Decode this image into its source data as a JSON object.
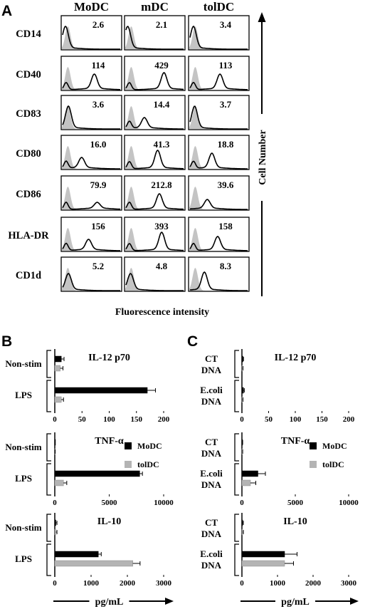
{
  "panels": {
    "a": "A",
    "b": "B",
    "c": "C"
  },
  "flow": {
    "columns": [
      "MoDC",
      "mDC",
      "tolDC"
    ],
    "rows": [
      {
        "marker": "CD14",
        "values": [
          "2.6",
          "2.1",
          "3.4"
        ]
      },
      {
        "marker": "CD40",
        "values": [
          "114",
          "429",
          "113"
        ]
      },
      {
        "marker": "CD83",
        "values": [
          "3.6",
          "14.4",
          "3.7"
        ]
      },
      {
        "marker": "CD80",
        "values": [
          "16.0",
          "41.3",
          "18.8"
        ]
      },
      {
        "marker": "CD86",
        "values": [
          "79.9",
          "212.8",
          "39.6"
        ]
      },
      {
        "marker": "HLA-DR",
        "values": [
          "156",
          "393",
          "158"
        ]
      },
      {
        "marker": "CD1d",
        "values": [
          "5.2",
          "4.8",
          "8.3"
        ]
      }
    ],
    "xlabel": "Fluorescence intensity",
    "ylabel": "Cell Number"
  },
  "chart_data": [
    {
      "panel": "B",
      "type": "bar",
      "title": "IL-12 p70",
      "categories": [
        "Non-stim",
        "LPS"
      ],
      "series": [
        {
          "name": "MoDC",
          "values": [
            12,
            170
          ],
          "errors": [
            5,
            15
          ]
        },
        {
          "name": "tolDC",
          "values": [
            10,
            12
          ],
          "errors": [
            5,
            4
          ]
        }
      ],
      "xlim": [
        0,
        200
      ],
      "ticks": [
        0,
        50,
        100,
        150,
        200
      ],
      "color_series": [
        "#000000",
        "#b4b4b4"
      ]
    },
    {
      "panel": "B",
      "type": "bar",
      "title": "TNF-α",
      "categories": [
        "Non-stim",
        "LPS"
      ],
      "series": [
        {
          "name": "MoDC",
          "values": [
            20,
            7800
          ],
          "errors": [
            10,
            250
          ]
        },
        {
          "name": "tolDC",
          "values": [
            20,
            800
          ],
          "errors": [
            10,
            300
          ]
        }
      ],
      "xlim": [
        0,
        10000
      ],
      "ticks": [
        0,
        5000,
        10000
      ],
      "legend": true
    },
    {
      "panel": "B",
      "type": "bar",
      "title": "IL-10",
      "categories": [
        "Non-stim",
        "LPS"
      ],
      "series": [
        {
          "name": "MoDC",
          "values": [
            30,
            1200
          ],
          "errors": [
            30,
            80
          ]
        },
        {
          "name": "tolDC",
          "values": [
            30,
            2150
          ],
          "errors": [
            30,
            200
          ]
        }
      ],
      "xlim": [
        0,
        3000
      ],
      "ticks": [
        0,
        1000,
        2000,
        3000
      ],
      "xlabel": "pg/mL"
    },
    {
      "panel": "C",
      "type": "bar",
      "title": "IL-12 p70",
      "categories": [
        "CT DNA",
        "E.coli DNA"
      ],
      "series": [
        {
          "name": "MoDC",
          "values": [
            2,
            3
          ],
          "errors": [
            1,
            1.5
          ]
        },
        {
          "name": "tolDC",
          "values": [
            1,
            1
          ],
          "errors": [
            1,
            1
          ]
        }
      ],
      "xlim": [
        0,
        200
      ],
      "ticks": [
        0,
        50,
        100,
        150,
        200
      ]
    },
    {
      "panel": "C",
      "type": "bar",
      "title": "TNF-α",
      "categories": [
        "CT DNA",
        "E.coli DNA"
      ],
      "series": [
        {
          "name": "MoDC",
          "values": [
            40,
            1500
          ],
          "errors": [
            30,
            700
          ]
        },
        {
          "name": "tolDC",
          "values": [
            40,
            800
          ],
          "errors": [
            30,
            500
          ]
        }
      ],
      "xlim": [
        0,
        10000
      ],
      "ticks": [
        0,
        5000,
        10000
      ],
      "legend": true
    },
    {
      "panel": "C",
      "type": "bar",
      "title": "IL-10",
      "categories": [
        "CT DNA",
        "E.coli DNA"
      ],
      "series": [
        {
          "name": "MoDC",
          "values": [
            20,
            1200
          ],
          "errors": [
            20,
            350
          ]
        },
        {
          "name": "tolDC",
          "values": [
            20,
            1200
          ],
          "errors": [
            20,
            250
          ]
        }
      ],
      "xlim": [
        0,
        3000
      ],
      "ticks": [
        0,
        1000,
        2000,
        3000
      ],
      "xlabel": "pg/mL"
    }
  ]
}
